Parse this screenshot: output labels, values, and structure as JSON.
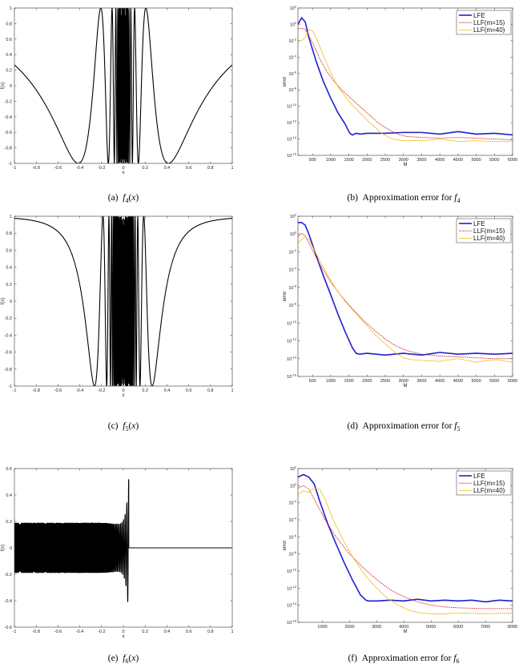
{
  "colors": {
    "LFE": "#1f1fd0",
    "LLF15": "#cc1111",
    "LLF40": "#f2bf1a",
    "signal": "#000000"
  },
  "chart_data": [
    {
      "type": "line",
      "id": "a",
      "caption": {
        "prefix": "(a)",
        "math": "f",
        "sub": "4",
        "suffix": "(x)"
      },
      "xlabel": "x",
      "ylabel": "f(x)",
      "xlim": [
        -1,
        1
      ],
      "ylim": [
        -1,
        1
      ],
      "xticks": [
        "-1",
        "-0.8",
        "-0.6",
        "-0.4",
        "-0.2",
        "0",
        "0.2",
        "0.4",
        "0.6",
        "0.8",
        "1"
      ],
      "yticks": [
        "-1",
        "-0.8",
        "-0.6",
        "-0.4",
        "-0.2",
        "0",
        "0.2",
        "0.4",
        "0.6",
        "0.8",
        "1"
      ],
      "series": [
        {
          "kind": "cos_x_inverse",
          "freq": 1.3,
          "samples": 4000
        }
      ]
    },
    {
      "type": "line",
      "id": "b",
      "caption": {
        "prefix": "(b)",
        "text": "Approximation error for",
        "math": "f",
        "sub": "4"
      },
      "xlabel": "M",
      "ylabel": "error",
      "yscale": "log",
      "xlim": [
        100,
        6000
      ],
      "ylim_exp": [
        -16,
        2
      ],
      "xticks": [
        "500",
        "1000",
        "1500",
        "2000",
        "2500",
        "3000",
        "3500",
        "4000",
        "4500",
        "5000",
        "5500",
        "6000"
      ],
      "yticks": [
        "-16",
        "-14",
        "-12",
        "-10",
        "-8",
        "-6",
        "-4",
        "-2",
        "0",
        "2"
      ],
      "legend": [
        "LFE",
        "LLF(m=15)",
        "LLF(m=40)"
      ],
      "series": [
        {
          "name": "LFE",
          "x": [
            100,
            200,
            300,
            400,
            600,
            800,
            1000,
            1200,
            1400,
            1500,
            1550,
            1600,
            1700,
            1800,
            2000,
            2500,
            3000,
            3500,
            4000,
            4500,
            5000,
            5500,
            6000
          ],
          "log10y": [
            0,
            0.8,
            0.3,
            -1.6,
            -4.5,
            -7.0,
            -9.0,
            -10.8,
            -12.2,
            -13.1,
            -13.4,
            -13.5,
            -13.3,
            -13.4,
            -13.3,
            -13.3,
            -13.2,
            -13.2,
            -13.4,
            -13.1,
            -13.4,
            -13.3,
            -13.5
          ]
        },
        {
          "name": "LLF(m=15)",
          "x": [
            100,
            200,
            300,
            500,
            700,
            900,
            1100,
            1300,
            1500,
            1700,
            1900,
            2100,
            2300,
            2500,
            2700,
            2900,
            3100,
            3500,
            4000,
            4500,
            5000,
            5500,
            6000
          ],
          "log10y": [
            -0.5,
            -0.5,
            -0.6,
            -2.2,
            -4.2,
            -5.8,
            -7.0,
            -8.0,
            -8.8,
            -9.6,
            -10.4,
            -11.2,
            -12.0,
            -12.6,
            -13.1,
            -13.5,
            -13.7,
            -13.8,
            -13.9,
            -13.8,
            -13.9,
            -14.0,
            -14.1
          ]
        },
        {
          "name": "LLF(m=40)",
          "x": [
            100,
            200,
            300,
            400,
            500,
            600,
            800,
            1000,
            1200,
            1400,
            1600,
            1800,
            2000,
            2200,
            2400,
            2600,
            2800,
            3000,
            3500,
            4000,
            4500,
            5000,
            5500,
            6000
          ],
          "log10y": [
            -2.0,
            -2.0,
            -1.6,
            -0.6,
            -0.8,
            -1.6,
            -3.8,
            -5.9,
            -7.6,
            -8.8,
            -9.9,
            -10.8,
            -11.7,
            -12.5,
            -13.3,
            -13.8,
            -14.1,
            -14.2,
            -14.2,
            -14.0,
            -14.3,
            -14.2,
            -14.3,
            -14.3
          ]
        }
      ]
    },
    {
      "type": "line",
      "id": "c",
      "caption": {
        "prefix": "(c)",
        "math": "f",
        "sub": "5",
        "suffix": "(x)"
      },
      "xlabel": "x",
      "ylabel": "f(x)",
      "xlim": [
        -1,
        1
      ],
      "ylim": [
        -1,
        1
      ],
      "xticks": [
        "-1",
        "-0.8",
        "-0.6",
        "-0.4",
        "-0.2",
        "0",
        "0.2",
        "0.4",
        "0.6",
        "0.8",
        "1"
      ],
      "yticks": [
        "-1",
        "-0.8",
        "-0.6",
        "-0.4",
        "-0.2",
        "0",
        "0.2",
        "0.4",
        "0.6",
        "0.8",
        "1"
      ],
      "series": [
        {
          "kind": "cos_x_sq_inverse",
          "freq": 0.22,
          "samples": 6000
        }
      ]
    },
    {
      "type": "line",
      "id": "d",
      "caption": {
        "prefix": "(d)",
        "text": "Approximation error for",
        "math": "f",
        "sub": "5"
      },
      "xlabel": "M",
      "ylabel": "error",
      "yscale": "log",
      "xlim": [
        100,
        6000
      ],
      "ylim_exp": [
        -16,
        2
      ],
      "xticks": [
        "500",
        "1000",
        "1500",
        "2000",
        "2500",
        "3000",
        "3500",
        "4000",
        "4500",
        "5000",
        "5500",
        "6000"
      ],
      "yticks": [
        "-16",
        "-14",
        "-12",
        "-10",
        "-8",
        "-6",
        "-4",
        "-2",
        "0",
        "2"
      ],
      "legend": [
        "LFE",
        "LLF(m=15)",
        "LLF(m=40)"
      ],
      "series": [
        {
          "name": "LFE",
          "x": [
            100,
            200,
            300,
            400,
            600,
            800,
            1000,
            1200,
            1400,
            1600,
            1700,
            1800,
            2000,
            2500,
            3000,
            3500,
            4000,
            4500,
            5000,
            5500,
            6000
          ],
          "log10y": [
            1.3,
            1.3,
            1.0,
            0.0,
            -2.4,
            -4.7,
            -6.8,
            -9.0,
            -11.0,
            -12.8,
            -13.4,
            -13.5,
            -13.4,
            -13.6,
            -13.4,
            -13.6,
            -13.3,
            -13.5,
            -13.4,
            -13.5,
            -13.4
          ]
        },
        {
          "name": "LLF(m=15)",
          "x": [
            100,
            200,
            300,
            500,
            700,
            1000,
            1300,
            1600,
            1900,
            2200,
            2500,
            2800,
            3100,
            3500,
            4000,
            4500,
            5000,
            5500,
            6000
          ],
          "log10y": [
            -0.3,
            0.1,
            -0.2,
            -1.8,
            -3.4,
            -5.4,
            -7.0,
            -8.4,
            -9.7,
            -10.8,
            -11.8,
            -12.6,
            -13.1,
            -13.5,
            -13.7,
            -13.8,
            -13.9,
            -14.0,
            -14.0
          ]
        },
        {
          "name": "LLF(m=40)",
          "x": [
            100,
            200,
            300,
            400,
            600,
            800,
            1000,
            1200,
            1400,
            1600,
            1800,
            2000,
            2200,
            2400,
            2600,
            2800,
            3000,
            3200,
            3500,
            4000,
            4500,
            5000,
            5500,
            6000
          ],
          "log10y": [
            -1.0,
            -0.6,
            -0.3,
            -0.6,
            -2.2,
            -3.8,
            -5.2,
            -6.5,
            -7.6,
            -8.5,
            -9.4,
            -10.3,
            -11.2,
            -12.0,
            -12.7,
            -13.4,
            -13.9,
            -14.1,
            -14.2,
            -14.3,
            -14.0,
            -14.4,
            -14.1,
            -14.4
          ]
        }
      ]
    },
    {
      "type": "line",
      "id": "e",
      "caption": {
        "prefix": "(e)",
        "math": "f",
        "sub": "6",
        "suffix": "(x)"
      },
      "xlabel": "x",
      "ylabel": "f(x)",
      "xlim": [
        -1,
        1
      ],
      "ylim": [
        -0.6,
        0.6
      ],
      "xticks": [
        "-1",
        "-0.8",
        "-0.6",
        "-0.4",
        "-0.2",
        "0",
        "0.2",
        "0.4",
        "0.6",
        "0.8",
        "1"
      ],
      "yticks": [
        "-0.6",
        "-0.4",
        "-0.2",
        "0",
        "0.2",
        "0.4",
        "0.6"
      ],
      "series": [
        {
          "kind": "chirp_decay",
          "samples": 6000
        }
      ]
    },
    {
      "type": "line",
      "id": "f",
      "caption": {
        "prefix": "(f)",
        "text": "Approximation error for",
        "math": "f",
        "sub": "6"
      },
      "xlabel": "M",
      "ylabel": "error",
      "yscale": "log",
      "xlim": [
        100,
        8000
      ],
      "ylim_exp": [
        -16,
        2
      ],
      "xticks": [
        "1000",
        "2000",
        "3000",
        "4000",
        "5000",
        "6000",
        "7000",
        "8000"
      ],
      "yticks": [
        "-16",
        "-14",
        "-12",
        "-10",
        "-8",
        "-6",
        "-4",
        "-2",
        "0",
        "2"
      ],
      "legend": [
        "LFE",
        "LLF(m=15)",
        "LLF(m=40)"
      ],
      "series": [
        {
          "name": "LFE",
          "x": [
            100,
            300,
            500,
            700,
            900,
            1200,
            1500,
            1800,
            2100,
            2400,
            2600,
            2700,
            3000,
            3500,
            4000,
            4500,
            5000,
            5500,
            6000,
            6500,
            7000,
            7500,
            8000
          ],
          "log10y": [
            1.0,
            1.3,
            1.0,
            0.2,
            -1.8,
            -4.5,
            -6.8,
            -9.0,
            -11.0,
            -12.8,
            -13.4,
            -13.5,
            -13.5,
            -13.4,
            -13.5,
            -13.3,
            -13.5,
            -13.4,
            -13.5,
            -13.4,
            -13.6,
            -13.4,
            -13.5
          ]
        },
        {
          "name": "LLF(m=15)",
          "x": [
            100,
            300,
            500,
            800,
            1100,
            1500,
            2000,
            2500,
            3000,
            3500,
            4000,
            4500,
            5000,
            5500,
            6000,
            7000,
            8000
          ],
          "log10y": [
            -0.3,
            0.0,
            -0.4,
            -2.2,
            -4.0,
            -6.0,
            -8.0,
            -9.6,
            -11.0,
            -12.2,
            -13.0,
            -13.6,
            -14.0,
            -14.2,
            -14.3,
            -14.4,
            -14.4
          ]
        },
        {
          "name": "LLF(m=40)",
          "x": [
            100,
            300,
            500,
            700,
            900,
            1100,
            1400,
            1800,
            2200,
            2600,
            3000,
            3400,
            3800,
            4200,
            4600,
            5000,
            5500,
            6000,
            7000,
            8000
          ],
          "log10y": [
            -1.0,
            -0.6,
            -0.8,
            -0.3,
            -0.4,
            -1.6,
            -4.0,
            -6.6,
            -8.8,
            -10.6,
            -12.0,
            -13.2,
            -14.0,
            -14.6,
            -14.9,
            -15.0,
            -15.0,
            -14.9,
            -15.0,
            -14.9
          ]
        }
      ]
    }
  ]
}
